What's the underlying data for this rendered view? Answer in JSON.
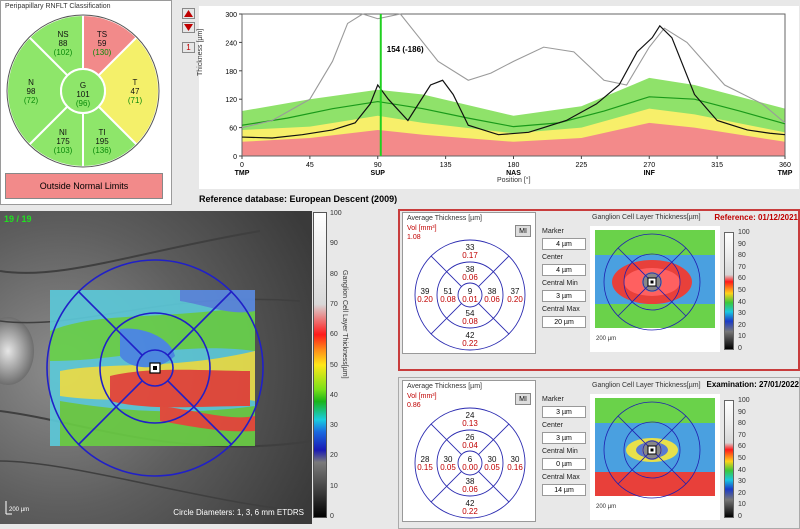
{
  "rnfl": {
    "title": "Peripapillary RNFLT Classification",
    "sectors": {
      "ns": {
        "name": "NS",
        "value": "88",
        "ref": "(102)"
      },
      "ts": {
        "name": "TS",
        "value": "59",
        "ref": "(130)"
      },
      "n": {
        "name": "N",
        "value": "98",
        "ref": "(72)"
      },
      "g": {
        "name": "G",
        "value": "101",
        "ref": "(96)"
      },
      "t": {
        "name": "T",
        "value": "47",
        "ref": "(71)"
      },
      "ni": {
        "name": "NI",
        "value": "175",
        "ref": "(103)"
      },
      "ti": {
        "name": "TI",
        "value": "195",
        "ref": "(136)"
      }
    },
    "status": "Outside Normal Limits",
    "colors": {
      "normal": "#8ee66a",
      "borderline": "#f4f06a",
      "outside": "#f28a8a"
    }
  },
  "toolbar": {
    "up_icon": "triangle-up-icon",
    "down_icon": "triangle-down-icon",
    "page_label": "1"
  },
  "thickness_graph": {
    "y_axis_label": "Thickness [µm]",
    "x_axis_label": "Position [°]",
    "cursor_label": "154 (-186)",
    "y_ticks": [
      "300",
      "240",
      "180",
      "120",
      "60",
      "0"
    ],
    "x_ticks": [
      "0",
      "45",
      "90",
      "135",
      "180",
      "225",
      "270",
      "315",
      "360"
    ],
    "x_regions": [
      "TMP",
      "SUP",
      "NAS",
      "INF",
      "TMP"
    ]
  },
  "reference_db": "Reference database: European Descent (2009)",
  "fundus": {
    "counter": "19 / 19",
    "scale": "200 µm",
    "caption": "Circle Diameters: 1, 3, 6 mm ETDRS",
    "colorbar_title": "Ganglion Cell Layer Thickness[µm]",
    "colorbar_ticks": [
      "100",
      "90",
      "80",
      "70",
      "60",
      "50",
      "40",
      "30",
      "20",
      "10",
      "0"
    ]
  },
  "reference": {
    "header": "Reference: 01/12/2021",
    "avg_title": "Average Thickness [µm]",
    "vol_label": "Vol [mm³]",
    "vol_value": "1.08",
    "mi_button": "MI",
    "grid": {
      "top": {
        "v": "33",
        "vol": "0.17"
      },
      "inner_top": {
        "v": "38",
        "vol": "0.06"
      },
      "left": {
        "v": "39",
        "vol": "0.20"
      },
      "inner_left": {
        "v": "51",
        "vol": "0.08"
      },
      "center": {
        "v": "9",
        "vol": "0.01"
      },
      "inner_right": {
        "v": "38",
        "vol": "0.06"
      },
      "right": {
        "v": "37",
        "vol": "0.20"
      },
      "inner_bottom": {
        "v": "54",
        "vol": "0.08"
      },
      "bottom": {
        "v": "42",
        "vol": "0.22"
      }
    },
    "marker": {
      "label": "Marker",
      "value": "4 µm"
    },
    "center": {
      "label": "Center",
      "value": "4 µm"
    },
    "cmin": {
      "label": "Central Min",
      "value": "3 µm"
    },
    "cmax": {
      "label": "Central Max",
      "value": "20 µm"
    },
    "map_title": "Ganglion Cell Layer Thickness[µm]",
    "scale": "200 µm"
  },
  "examination": {
    "header": "Examination: 27/01/2022",
    "avg_title": "Average Thickness [µm]",
    "vol_label": "Vol [mm³]",
    "vol_value": "0.86",
    "mi_button": "MI",
    "grid": {
      "top": {
        "v": "24",
        "vol": "0.13"
      },
      "inner_top": {
        "v": "26",
        "vol": "0.04"
      },
      "left": {
        "v": "28",
        "vol": "0.15"
      },
      "inner_left": {
        "v": "30",
        "vol": "0.05"
      },
      "center": {
        "v": "6",
        "vol": "0.00"
      },
      "inner_right": {
        "v": "30",
        "vol": "0.05"
      },
      "right": {
        "v": "30",
        "vol": "0.16"
      },
      "inner_bottom": {
        "v": "38",
        "vol": "0.06"
      },
      "bottom": {
        "v": "42",
        "vol": "0.22"
      }
    },
    "marker": {
      "label": "Marker",
      "value": "3 µm"
    },
    "center": {
      "label": "Center",
      "value": "3 µm"
    },
    "cmin": {
      "label": "Central Min",
      "value": "0 µm"
    },
    "cmax": {
      "label": "Central Max",
      "value": "14 µm"
    },
    "map_title": "Ganglion Cell Layer Thickness[µm]",
    "scale": "200 µm"
  },
  "small_colorbar_ticks": [
    "100",
    "90",
    "80",
    "70",
    "60",
    "50",
    "40",
    "30",
    "20",
    "10",
    "0"
  ]
}
